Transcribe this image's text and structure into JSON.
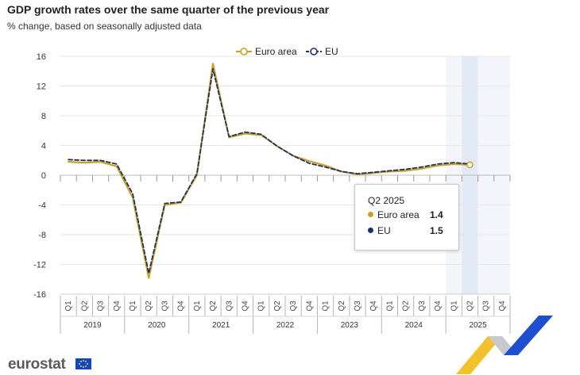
{
  "title": "GDP growth rates over the same quarter of the previous year",
  "subtitle": "% change, based on seasonally adjusted data",
  "legend": [
    {
      "label": "Euro area",
      "color": "#c9a21a"
    },
    {
      "label": "EU",
      "color": "#1f2f6a"
    }
  ],
  "tooltip": {
    "header": "Q2 2025",
    "rows": [
      {
        "label": "Euro area",
        "value": "1.4",
        "color": "#c9a21a"
      },
      {
        "label": "EU",
        "value": "1.5",
        "color": "#1f2f6a"
      }
    ]
  },
  "brand": {
    "name": "eurostat",
    "flag_icon": "eu-flag-icon"
  },
  "chart_data": {
    "type": "line",
    "categories": [
      "2019 Q1",
      "2019 Q2",
      "2019 Q3",
      "2019 Q4",
      "2020 Q1",
      "2020 Q2",
      "2020 Q3",
      "2020 Q4",
      "2021 Q1",
      "2021 Q2",
      "2021 Q3",
      "2021 Q4",
      "2022 Q1",
      "2022 Q2",
      "2022 Q3",
      "2022 Q4",
      "2023 Q1",
      "2023 Q2",
      "2023 Q3",
      "2023 Q4",
      "2024 Q1",
      "2024 Q2",
      "2024 Q3",
      "2024 Q4",
      "2025 Q1",
      "2025 Q2",
      "2025 Q3",
      "2025 Q4"
    ],
    "quarter_labels": [
      "Q1",
      "Q2",
      "Q3",
      "Q4"
    ],
    "years": [
      "2019",
      "2020",
      "2021",
      "2022",
      "2023",
      "2024",
      "2025"
    ],
    "series": [
      {
        "name": "Euro area",
        "color": "#c9a21a",
        "style": "solid",
        "values": [
          1.8,
          1.7,
          1.8,
          1.2,
          -3.0,
          -13.8,
          -4.0,
          -3.7,
          0.0,
          15.0,
          5.1,
          5.6,
          5.4,
          3.9,
          2.6,
          1.9,
          1.3,
          0.5,
          0.1,
          0.3,
          0.5,
          0.6,
          0.9,
          1.3,
          1.5,
          1.4,
          null,
          null
        ]
      },
      {
        "name": "EU",
        "color": "#1f2f6a",
        "style": "dashed",
        "values": [
          2.1,
          2.0,
          2.0,
          1.5,
          -2.5,
          -13.2,
          -3.8,
          -3.6,
          0.2,
          14.3,
          5.2,
          5.8,
          5.5,
          3.9,
          2.6,
          1.6,
          1.1,
          0.5,
          0.2,
          0.4,
          0.6,
          0.8,
          1.1,
          1.5,
          1.7,
          1.5,
          null,
          null
        ]
      }
    ],
    "yticks": [
      16,
      12,
      8,
      4,
      0,
      -4,
      -8,
      -12,
      -16
    ],
    "ylim": [
      -16,
      16
    ],
    "highlight_band": {
      "from": "2025 Q1",
      "to": "2025 Q4"
    },
    "highlight_point": "2025 Q2",
    "xlabel": "",
    "ylabel": "",
    "grid": true,
    "legend_position": "top-center"
  }
}
